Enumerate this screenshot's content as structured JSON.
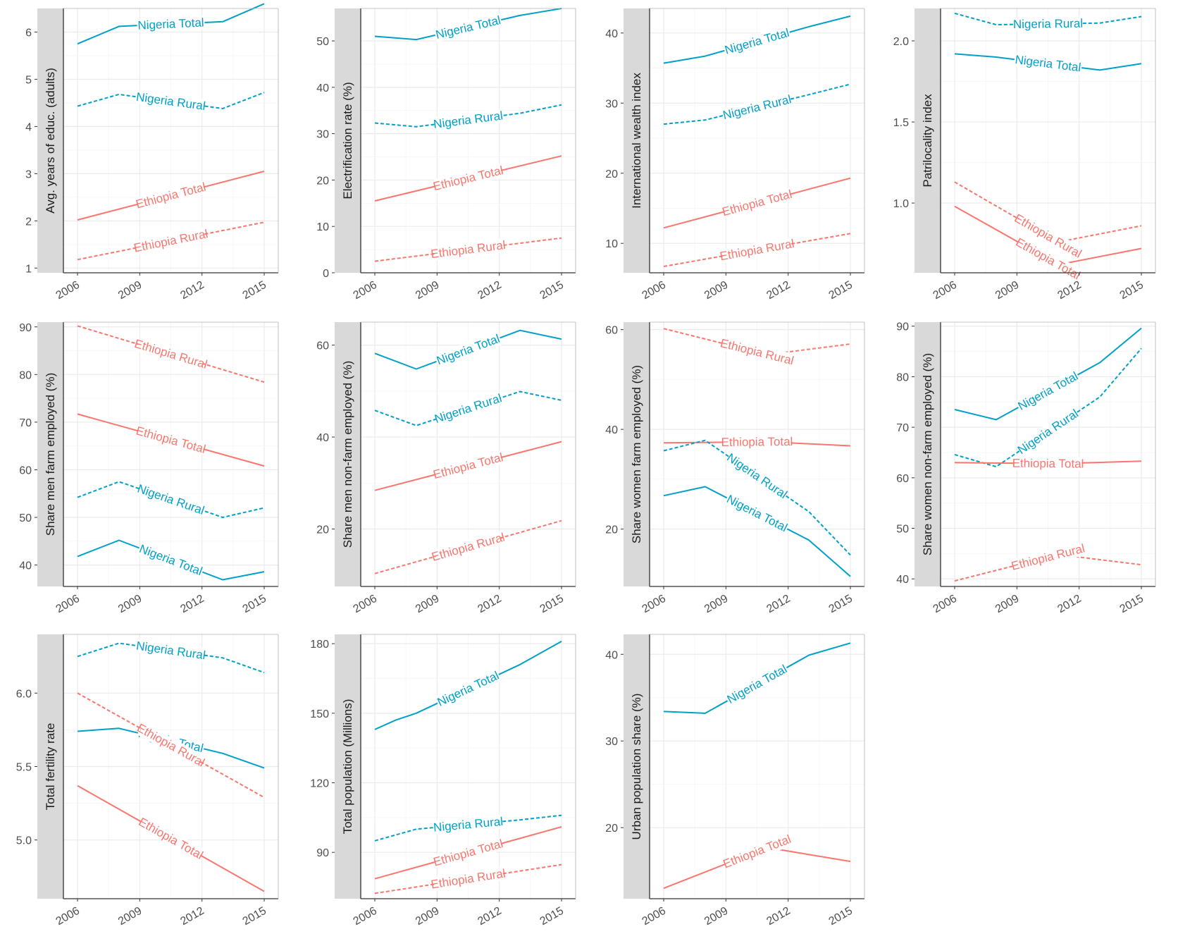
{
  "colors": {
    "Ethiopia": "#F8766D",
    "Nigeria": "#00A0C8",
    "strip": "#D9D9D9",
    "grid": "#EBEBEB",
    "axis": "#333333",
    "tick_text": "#4D4D4D"
  },
  "x_ticks": [
    "2006",
    "2009",
    "2012",
    "2015"
  ],
  "chart_data": [
    {
      "type": "line",
      "ylabel": "Avg. years of educ. (adults)",
      "xlim": [
        2006,
        2015
      ],
      "ylim": [
        0.9,
        6.5
      ],
      "yticks": [
        1,
        2,
        3,
        4,
        5,
        6
      ],
      "series": [
        {
          "name": "Nigeria Total",
          "country": "Nigeria",
          "dashed": false,
          "x": [
            2006,
            2008,
            2013,
            2015
          ],
          "y": [
            5.75,
            6.12,
            6.22,
            6.6
          ]
        },
        {
          "name": "Nigeria Rural",
          "country": "Nigeria",
          "dashed": true,
          "x": [
            2006,
            2008,
            2013,
            2015
          ],
          "y": [
            4.43,
            4.68,
            4.38,
            4.72
          ]
        },
        {
          "name": "Ethiopia Total",
          "country": "Ethiopia",
          "dashed": false,
          "x": [
            2006,
            2015
          ],
          "y": [
            2.02,
            3.05
          ]
        },
        {
          "name": "Ethiopia Rural",
          "country": "Ethiopia",
          "dashed": true,
          "x": [
            2006,
            2015
          ],
          "y": [
            1.18,
            1.97
          ]
        }
      ]
    },
    {
      "type": "line",
      "ylabel": "Electrification rate (%)",
      "xlim": [
        2006,
        2015
      ],
      "ylim": [
        0,
        57
      ],
      "yticks": [
        0,
        10,
        20,
        30,
        40,
        50
      ],
      "series": [
        {
          "name": "Nigeria Total",
          "country": "Nigeria",
          "dashed": false,
          "x": [
            2006,
            2008,
            2013,
            2015
          ],
          "y": [
            51.0,
            50.3,
            55.5,
            57.0
          ]
        },
        {
          "name": "Nigeria Rural",
          "country": "Nigeria",
          "dashed": true,
          "x": [
            2006,
            2008,
            2013,
            2015
          ],
          "y": [
            32.3,
            31.5,
            34.4,
            36.2
          ]
        },
        {
          "name": "Ethiopia Total",
          "country": "Ethiopia",
          "dashed": false,
          "x": [
            2006,
            2015
          ],
          "y": [
            15.5,
            25.2
          ]
        },
        {
          "name": "Ethiopia Rural",
          "country": "Ethiopia",
          "dashed": true,
          "x": [
            2006,
            2015
          ],
          "y": [
            2.5,
            7.5
          ]
        }
      ]
    },
    {
      "type": "line",
      "ylabel": "International wealth index",
      "xlim": [
        2006,
        2015
      ],
      "ylim": [
        5.8,
        43.5
      ],
      "yticks": [
        10,
        20,
        30,
        40
      ],
      "series": [
        {
          "name": "Nigeria Total",
          "country": "Nigeria",
          "dashed": false,
          "x": [
            2006,
            2008,
            2013,
            2015
          ],
          "y": [
            35.7,
            36.7,
            40.9,
            42.4
          ]
        },
        {
          "name": "Nigeria Rural",
          "country": "Nigeria",
          "dashed": true,
          "x": [
            2006,
            2008,
            2013,
            2015
          ],
          "y": [
            27.0,
            27.6,
            31.2,
            32.7
          ]
        },
        {
          "name": "Ethiopia Total",
          "country": "Ethiopia",
          "dashed": false,
          "x": [
            2006,
            2015
          ],
          "y": [
            12.2,
            19.3
          ]
        },
        {
          "name": "Ethiopia Rural",
          "country": "Ethiopia",
          "dashed": true,
          "x": [
            2006,
            2015
          ],
          "y": [
            6.7,
            11.4
          ]
        }
      ]
    },
    {
      "type": "line",
      "ylabel": "Patrilocality index",
      "xlim": [
        2006,
        2015
      ],
      "ylim": [
        0.57,
        2.2
      ],
      "yticks": [
        1.0,
        1.5,
        2.0
      ],
      "yticklabels": [
        "1.0",
        "1.5",
        "2.0"
      ],
      "series": [
        {
          "name": "Nigeria Rural",
          "country": "Nigeria",
          "dashed": true,
          "x": [
            2006,
            2008,
            2013,
            2015
          ],
          "y": [
            2.17,
            2.1,
            2.11,
            2.15
          ]
        },
        {
          "name": "Nigeria Total",
          "country": "Nigeria",
          "dashed": false,
          "x": [
            2006,
            2008,
            2013,
            2015
          ],
          "y": [
            1.92,
            1.9,
            1.82,
            1.86
          ]
        },
        {
          "name": "Ethiopia Rural",
          "country": "Ethiopia",
          "dashed": true,
          "x": [
            2006,
            2011,
            2015
          ],
          "y": [
            1.13,
            0.76,
            0.86
          ]
        },
        {
          "name": "Ethiopia Total",
          "country": "Ethiopia",
          "dashed": false,
          "x": [
            2006,
            2011,
            2015
          ],
          "y": [
            0.98,
            0.62,
            0.72
          ]
        }
      ]
    },
    {
      "type": "line",
      "ylabel": "Share men farm employed (%)",
      "xlim": [
        2006,
        2015
      ],
      "ylim": [
        35.5,
        91
      ],
      "yticks": [
        40,
        50,
        60,
        70,
        80,
        90
      ],
      "series": [
        {
          "name": "Ethiopia Rural",
          "country": "Ethiopia",
          "dashed": true,
          "x": [
            2006,
            2015
          ],
          "y": [
            90.2,
            78.4
          ]
        },
        {
          "name": "Ethiopia Total",
          "country": "Ethiopia",
          "dashed": false,
          "x": [
            2006,
            2015
          ],
          "y": [
            71.7,
            60.8
          ]
        },
        {
          "name": "Nigeria Rural",
          "country": "Nigeria",
          "dashed": true,
          "x": [
            2006,
            2008,
            2013,
            2015
          ],
          "y": [
            54.2,
            57.5,
            50.0,
            52.0
          ]
        },
        {
          "name": "Nigeria Total",
          "country": "Nigeria",
          "dashed": false,
          "x": [
            2006,
            2008,
            2013,
            2015
          ],
          "y": [
            41.8,
            45.2,
            36.9,
            38.6
          ]
        }
      ]
    },
    {
      "type": "line",
      "ylabel": "Share men non-farm employed (%)",
      "xlim": [
        2006,
        2015
      ],
      "ylim": [
        7.5,
        65
      ],
      "yticks": [
        20,
        40,
        60
      ],
      "series": [
        {
          "name": "Nigeria Total",
          "country": "Nigeria",
          "dashed": false,
          "x": [
            2006,
            2008,
            2013,
            2015
          ],
          "y": [
            58.2,
            54.8,
            63.2,
            61.3
          ]
        },
        {
          "name": "Nigeria Rural",
          "country": "Nigeria",
          "dashed": true,
          "x": [
            2006,
            2008,
            2013,
            2015
          ],
          "y": [
            45.8,
            42.5,
            49.9,
            48.0
          ]
        },
        {
          "name": "Ethiopia Total",
          "country": "Ethiopia",
          "dashed": false,
          "x": [
            2006,
            2015
          ],
          "y": [
            28.4,
            39.0
          ]
        },
        {
          "name": "Ethiopia Rural",
          "country": "Ethiopia",
          "dashed": true,
          "x": [
            2006,
            2015
          ],
          "y": [
            10.3,
            21.8
          ]
        }
      ]
    },
    {
      "type": "line",
      "ylabel": "Share women farm employed (%)",
      "xlim": [
        2006,
        2015
      ],
      "ylim": [
        8.5,
        61.5
      ],
      "yticks": [
        20,
        40,
        60
      ],
      "series": [
        {
          "name": "Ethiopia Rural",
          "country": "Ethiopia",
          "dashed": true,
          "x": [
            2006,
            2011,
            2015
          ],
          "y": [
            60.2,
            55.0,
            57.1
          ]
        },
        {
          "name": "Ethiopia Total",
          "country": "Ethiopia",
          "dashed": false,
          "x": [
            2006,
            2011,
            2015
          ],
          "y": [
            37.3,
            37.5,
            36.7
          ]
        },
        {
          "name": "Nigeria Rural",
          "country": "Nigeria",
          "dashed": true,
          "x": [
            2006,
            2008,
            2013,
            2015
          ],
          "y": [
            35.7,
            37.8,
            23.5,
            14.8
          ]
        },
        {
          "name": "Nigeria Total",
          "country": "Nigeria",
          "dashed": false,
          "x": [
            2006,
            2008,
            2013,
            2015
          ],
          "y": [
            26.7,
            28.5,
            17.8,
            10.5
          ]
        }
      ]
    },
    {
      "type": "line",
      "ylabel": "Share women non-farm employed (%)",
      "xlim": [
        2006,
        2015
      ],
      "ylim": [
        38.5,
        90.8
      ],
      "yticks": [
        40,
        50,
        60,
        70,
        80,
        90
      ],
      "series": [
        {
          "name": "Nigeria Total",
          "country": "Nigeria",
          "dashed": false,
          "x": [
            2006,
            2008,
            2013,
            2015
          ],
          "y": [
            73.5,
            71.5,
            82.8,
            89.6
          ]
        },
        {
          "name": "Nigeria Rural",
          "country": "Nigeria",
          "dashed": true,
          "x": [
            2006,
            2008,
            2013,
            2015
          ],
          "y": [
            64.6,
            62.2,
            76.0,
            85.6
          ]
        },
        {
          "name": "Ethiopia Total",
          "country": "Ethiopia",
          "dashed": false,
          "x": [
            2006,
            2011,
            2015
          ],
          "y": [
            63.0,
            62.8,
            63.3
          ]
        },
        {
          "name": "Ethiopia Rural",
          "country": "Ethiopia",
          "dashed": true,
          "x": [
            2006,
            2011,
            2015
          ],
          "y": [
            39.6,
            44.8,
            42.8
          ]
        }
      ]
    },
    {
      "type": "line",
      "ylabel": "Total fertility rate",
      "xlim": [
        2006,
        2015
      ],
      "ylim": [
        4.6,
        6.4
      ],
      "yticks": [
        5.0,
        5.5,
        6.0
      ],
      "yticklabels": [
        "5.0",
        "5.5",
        "6.0"
      ],
      "series": [
        {
          "name": "Nigeria Rural",
          "country": "Nigeria",
          "dashed": true,
          "x": [
            2006,
            2008,
            2013,
            2015
          ],
          "y": [
            6.25,
            6.34,
            6.24,
            6.14
          ]
        },
        {
          "name": "Nigeria Total",
          "country": "Nigeria",
          "dashed": false,
          "x": [
            2006,
            2008,
            2013,
            2015
          ],
          "y": [
            5.74,
            5.76,
            5.59,
            5.49
          ]
        },
        {
          "name": "Ethiopia Rural",
          "country": "Ethiopia",
          "dashed": true,
          "x": [
            2006,
            2015
          ],
          "y": [
            6.0,
            5.29
          ]
        },
        {
          "name": "Ethiopia Total",
          "country": "Ethiopia",
          "dashed": false,
          "x": [
            2006,
            2015
          ],
          "y": [
            5.37,
            4.65
          ]
        }
      ]
    },
    {
      "type": "line",
      "ylabel": "Total population (Millions)",
      "xlim": [
        2006,
        2015
      ],
      "ylim": [
        70,
        184
      ],
      "yticks": [
        90,
        120,
        150,
        180
      ],
      "series": [
        {
          "name": "Nigeria Total",
          "country": "Nigeria",
          "dashed": false,
          "x": [
            2006,
            2007,
            2008,
            2013,
            2014,
            2015
          ],
          "y": [
            143,
            147,
            150,
            171,
            176,
            181
          ]
        },
        {
          "name": "Nigeria Rural",
          "country": "Nigeria",
          "dashed": true,
          "x": [
            2006,
            2008,
            2013,
            2015
          ],
          "y": [
            95,
            100,
            104,
            106
          ]
        },
        {
          "name": "Ethiopia Total",
          "country": "Ethiopia",
          "dashed": false,
          "x": [
            2006,
            2015
          ],
          "y": [
            78.6,
            101
          ]
        },
        {
          "name": "Ethiopia Rural",
          "country": "Ethiopia",
          "dashed": true,
          "x": [
            2006,
            2015
          ],
          "y": [
            72.3,
            84.7
          ]
        }
      ]
    },
    {
      "type": "line",
      "ylabel": "Urban population share (%)",
      "xlim": [
        2006,
        2015
      ],
      "ylim": [
        11.8,
        42.3
      ],
      "yticks": [
        20,
        30,
        40
      ],
      "series": [
        {
          "name": "Nigeria Total",
          "country": "Nigeria",
          "dashed": false,
          "x": [
            2006,
            2008,
            2013,
            2015
          ],
          "y": [
            33.4,
            33.2,
            39.9,
            41.3
          ]
        },
        {
          "name": "Ethiopia Total",
          "country": "Ethiopia",
          "dashed": false,
          "x": [
            2006,
            2011,
            2015
          ],
          "y": [
            13.0,
            17.7,
            16.1
          ]
        }
      ]
    }
  ]
}
